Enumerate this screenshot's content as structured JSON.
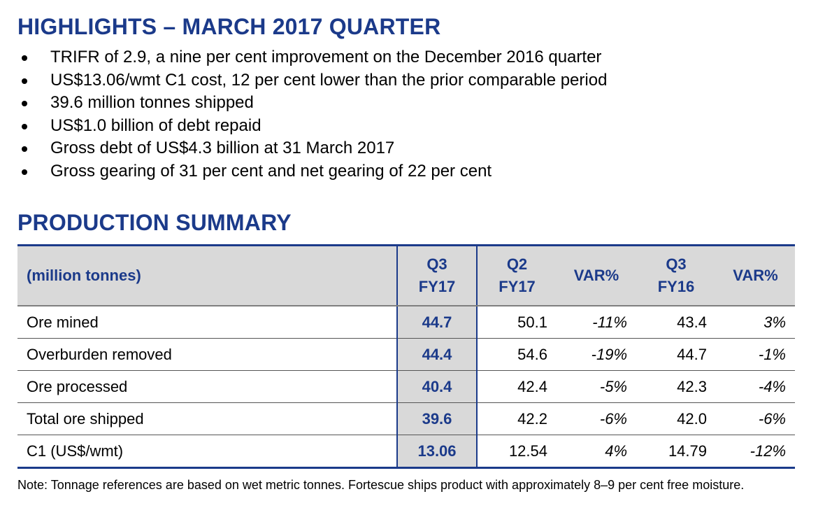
{
  "header": {
    "title": "HIGHLIGHTS – MARCH 2017 QUARTER"
  },
  "bullets": [
    "TRIFR of 2.9, a nine per cent improvement on the December 2016 quarter",
    "US$13.06/wmt C1 cost, 12 per cent lower than the prior comparable period",
    "39.6 million tonnes shipped",
    "US$1.0 billion of debt repaid",
    "Gross debt of US$4.3 billion at 31 March 2017",
    "Gross gearing of 31 per cent and net gearing of 22 per cent"
  ],
  "section": {
    "title": "PRODUCTION SUMMARY"
  },
  "table": {
    "columns": [
      [
        "(million tonnes)"
      ],
      [
        "Q3",
        "FY17"
      ],
      [
        "Q2",
        "FY17"
      ],
      [
        "VAR%"
      ],
      [
        "Q3",
        "FY16"
      ],
      [
        "VAR%"
      ]
    ],
    "rows": [
      [
        "Ore mined",
        "44.7",
        "50.1",
        "-11%",
        "43.4",
        "3%"
      ],
      [
        "Overburden removed",
        "44.4",
        "54.6",
        "-19%",
        "44.7",
        "-1%"
      ],
      [
        "Ore processed",
        "40.4",
        "42.4",
        "-5%",
        "42.3",
        "-4%"
      ],
      [
        "Total ore shipped",
        "39.6",
        "42.2",
        "-6%",
        "42.0",
        "-6%"
      ],
      [
        "C1 (US$/wmt)",
        "13.06",
        "12.54",
        "4%",
        "14.79",
        "-12%"
      ]
    ]
  },
  "note": "Note: Tonnage references are based on wet metric tonnes. Fortescue ships product with approximately 8–9 per cent free moisture."
}
